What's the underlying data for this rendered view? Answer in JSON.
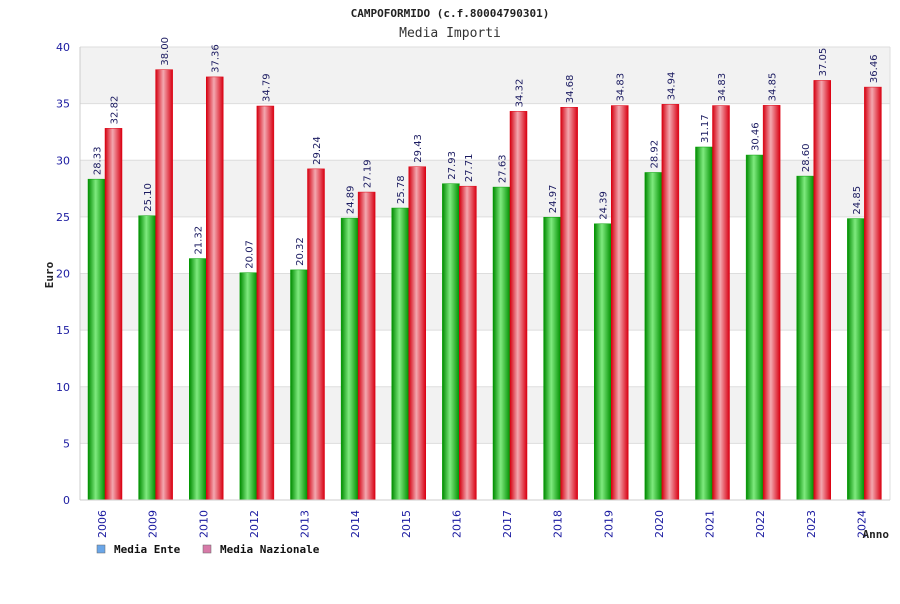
{
  "chart_data": {
    "type": "bar",
    "title": "CAMPOFORMIDO (c.f.80004790301)",
    "subtitle": "Media Importi",
    "xlabel": "Anno",
    "ylabel": "Euro",
    "ylim": [
      0,
      40
    ],
    "yticks": [
      0,
      5,
      10,
      15,
      20,
      25,
      30,
      35,
      40
    ],
    "grid": true,
    "legend_position": "bottom-left",
    "categories": [
      "2006",
      "2009",
      "2010",
      "2012",
      "2013",
      "2014",
      "2015",
      "2016",
      "2017",
      "2018",
      "2019",
      "2020",
      "2021",
      "2022",
      "2023",
      "2024"
    ],
    "series": [
      {
        "name": "Media Ente",
        "color": "#00a000",
        "legend_color": "#6aa6e8",
        "values": [
          28.33,
          25.1,
          21.32,
          20.07,
          20.32,
          24.89,
          25.78,
          27.93,
          27.63,
          24.97,
          24.39,
          28.92,
          31.17,
          30.46,
          28.6,
          24.85
        ],
        "labels": [
          "28.33",
          "25.10",
          "21.32",
          "20.07",
          "20.32",
          "24.89",
          "25.78",
          "27.93",
          "27.63",
          "24.97",
          "24.39",
          "28.92",
          "31.17",
          "30.46",
          "28.60",
          "24.85"
        ]
      },
      {
        "name": "Media Nazionale",
        "color": "#e00010",
        "legend_color": "#d77aa8",
        "values": [
          32.82,
          38.0,
          37.36,
          34.79,
          29.24,
          27.19,
          29.43,
          27.71,
          34.32,
          34.68,
          34.83,
          34.94,
          34.83,
          34.85,
          37.05,
          36.46
        ],
        "labels": [
          "32.82",
          "38.00",
          "37.36",
          "34.79",
          "29.24",
          "27.19",
          "29.43",
          "27.71",
          "34.32",
          "34.68",
          "34.83",
          "34.94",
          "34.83",
          "34.85",
          "37.05",
          "36.46"
        ]
      }
    ]
  }
}
